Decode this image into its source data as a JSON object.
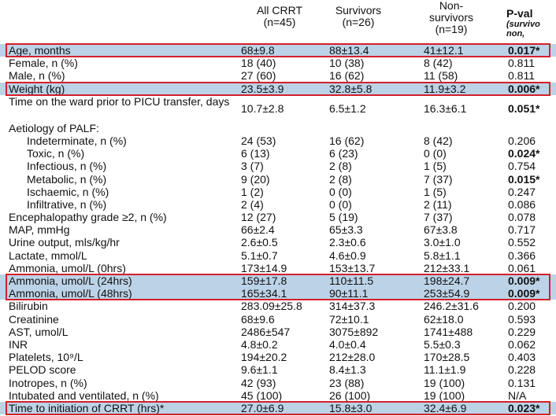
{
  "header": {
    "columns": [
      {
        "lines": [
          "All CRRT",
          "(n=45)"
        ]
      },
      {
        "lines": [
          "Survivors",
          "(n=26)"
        ]
      },
      {
        "lines": [
          "Non-",
          "survivors",
          "(n=19)"
        ]
      },
      {
        "lines": [
          "P-val",
          "(survivo",
          "non,"
        ]
      }
    ]
  },
  "table": {
    "rows": [
      {
        "label": "Age, months",
        "cells": [
          "68±9.8",
          "88±13.4",
          "41±12.1",
          "0.017*"
        ],
        "highlighted": true,
        "p_bold": true
      },
      {
        "label": "Female, n (%)",
        "cells": [
          "18 (40)",
          "10 (38)",
          "8 (42)",
          "0.811"
        ]
      },
      {
        "label": "Male, n (%)",
        "cells": [
          "27 (60)",
          "16 (62)",
          "11 (58)",
          "0.811"
        ]
      },
      {
        "label": "Weight (kg)",
        "cells": [
          "23.5±3.9",
          "32.8±5.8",
          "11.9±3.2",
          "0.006*"
        ],
        "highlighted": true,
        "p_bold": true
      },
      {
        "label": "Time on the ward prior to PICU transfer, days",
        "cells": [
          "10.7±2.8",
          "6.5±1.2",
          "16.3±6.1",
          "0.051*"
        ],
        "p_bold": true,
        "tall": true
      },
      {
        "label": "Aetiology of PALF:",
        "cells": []
      },
      {
        "label": "Indeterminate, n (%)",
        "cells": [
          "24 (53)",
          "16 (62)",
          "8 (42)",
          "0.206"
        ],
        "indent": true
      },
      {
        "label": "Toxic, n (%)",
        "cells": [
          "6 (13)",
          "6 (23)",
          "0 (0)",
          "0.024*"
        ],
        "indent": true,
        "p_bold": true
      },
      {
        "label": "Infectious, n (%)",
        "cells": [
          "3 (7)",
          "2 (8)",
          "1 (5)",
          "0.754"
        ],
        "indent": true
      },
      {
        "label": "Metabolic, n (%)",
        "cells": [
          "9 (20)",
          "2 (8)",
          "7 (37)",
          "0.015*"
        ],
        "indent": true,
        "p_bold": true
      },
      {
        "label": "Ischaemic, n (%)",
        "cells": [
          "1 (2)",
          "0 (0)",
          "1 (5)",
          "0.247"
        ],
        "indent": true
      },
      {
        "label": "Infiltrative, n (%)",
        "cells": [
          "2 (4)",
          "0 (0)",
          "2 (11)",
          "0.086"
        ],
        "indent": true
      },
      {
        "label": "Encephalopathy grade ≥2, n (%)",
        "cells": [
          "12 (27)",
          "5 (19)",
          "7 (37)",
          "0.078"
        ]
      },
      {
        "label": "MAP, mmHg",
        "cells": [
          "66±2.4",
          "65±3.3",
          "67±3.8",
          "0.717"
        ]
      },
      {
        "label": "Urine output, mls/kg/hr",
        "cells": [
          "2.6±0.5",
          "2.3±0.6",
          "3.0±1.0",
          "0.552"
        ]
      },
      {
        "label": "Lactate, mmol/L",
        "cells": [
          "5.1±0.7",
          "4.6±0.9",
          "5.8±1.1",
          "0.366"
        ]
      },
      {
        "label": "Ammonia, umol/L (0hrs)",
        "cells": [
          "173±14.9",
          "153±13.7",
          "212±33.1",
          "0.061"
        ]
      },
      {
        "label": "Ammonia, umol/L (24hrs)",
        "cells": [
          "159±17.8",
          "110±11.5",
          "198±24.7",
          "0.009*"
        ],
        "highlighted": true,
        "p_bold": true
      },
      {
        "label": "Ammonia, umol/L (48hrs)",
        "cells": [
          "165±34.1",
          "90±11.1",
          "253±54.9",
          "0.009*"
        ],
        "highlighted": true,
        "p_bold": true
      },
      {
        "label": "Bilirubin",
        "cells": [
          "283.09±25.8",
          "314±37.3",
          "246.2±31.6",
          "0.200"
        ]
      },
      {
        "label": "Creatinine",
        "cells": [
          "68±9.6",
          "72±10.1",
          "62±18.0",
          "0.593"
        ]
      },
      {
        "label": "AST, umol/L",
        "cells": [
          "2486±547",
          "3075±892",
          "1741±488",
          "0.229"
        ]
      },
      {
        "label": "INR",
        "cells": [
          "4.8±0.2",
          "4.0±0.4",
          "5.5±0.3",
          "0.062"
        ]
      },
      {
        "label": "Platelets, 10⁹/L",
        "cells": [
          "194±20.2",
          "212±28.0",
          "170±28.5",
          "0.403"
        ]
      },
      {
        "label": "PELOD score",
        "cells": [
          "9.6±1.1",
          "8.4±1.3",
          "11.1±1.9",
          "0.228"
        ]
      },
      {
        "label": "Inotropes, n (%)",
        "cells": [
          "42 (93)",
          "23 (88)",
          "19 (100)",
          "0.131"
        ]
      },
      {
        "label": "Intubated and ventilated, n (%)",
        "cells": [
          "45 (100)",
          "26 (100)",
          "19 (100)",
          "N/A"
        ]
      },
      {
        "label": "Time to initiation of CRRT (hrs)*",
        "cells": [
          "27.0±6.9",
          "15.8±3.0",
          "32.4±6.9",
          "0.023*"
        ],
        "highlighted": true,
        "p_bold": true
      }
    ]
  }
}
